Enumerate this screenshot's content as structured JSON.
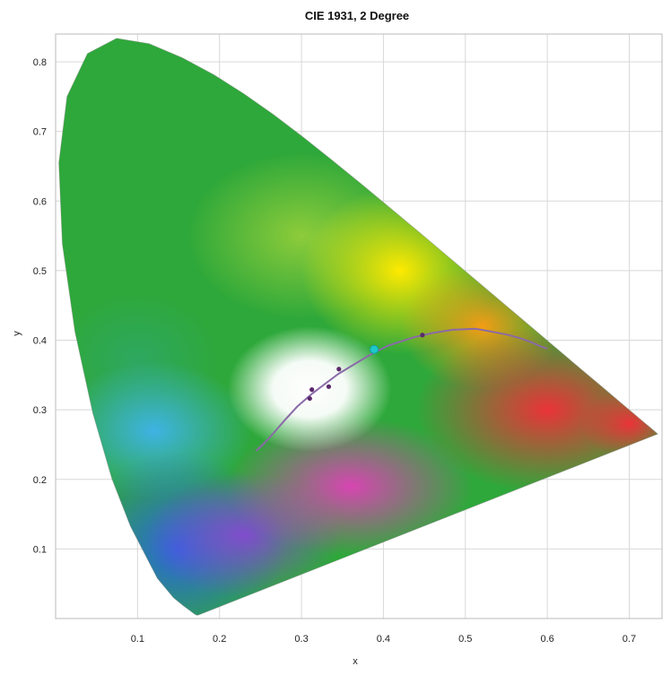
{
  "chart_data": {
    "type": "scatter",
    "title": "CIE 1931, 2 Degree",
    "xlabel": "x",
    "ylabel": "y",
    "xlim": [
      0.0,
      0.74
    ],
    "ylim": [
      0.0,
      0.84
    ],
    "grid": true,
    "x_ticks": [
      0.1,
      0.2,
      0.3,
      0.4,
      0.5,
      0.6,
      0.7
    ],
    "y_ticks": [
      0.1,
      0.2,
      0.3,
      0.4,
      0.5,
      0.6,
      0.7,
      0.8
    ],
    "spectral_locus": {
      "x": [
        0.1741,
        0.1738,
        0.1733,
        0.1726,
        0.1714,
        0.1689,
        0.1644,
        0.1566,
        0.144,
        0.1241,
        0.0913,
        0.0687,
        0.0454,
        0.0235,
        0.0082,
        0.0039,
        0.0139,
        0.0389,
        0.0743,
        0.1142,
        0.1547,
        0.1929,
        0.2296,
        0.2658,
        0.3016,
        0.3373,
        0.3731,
        0.4087,
        0.4441,
        0.4788,
        0.5125,
        0.5448,
        0.5752,
        0.6029,
        0.627,
        0.6482,
        0.6658,
        0.6801,
        0.6915,
        0.7006,
        0.7079,
        0.714,
        0.719,
        0.723,
        0.726,
        0.7283,
        0.73,
        0.7311,
        0.732,
        0.7327,
        0.7334,
        0.734,
        0.7344,
        0.7346,
        0.7347
      ],
      "y": [
        0.005,
        0.0049,
        0.0048,
        0.0048,
        0.0051,
        0.0069,
        0.0109,
        0.0177,
        0.0297,
        0.0578,
        0.1327,
        0.2007,
        0.295,
        0.4127,
        0.5384,
        0.6548,
        0.7502,
        0.812,
        0.8338,
        0.8262,
        0.8059,
        0.7816,
        0.7543,
        0.7243,
        0.6923,
        0.6589,
        0.6245,
        0.5896,
        0.5547,
        0.5202,
        0.4866,
        0.4544,
        0.4242,
        0.3965,
        0.3725,
        0.3514,
        0.334,
        0.3197,
        0.3083,
        0.2993,
        0.292,
        0.2859,
        0.2809,
        0.277,
        0.274,
        0.2717,
        0.27,
        0.2689,
        0.268,
        0.2673,
        0.2666,
        0.266,
        0.2656,
        0.2654,
        0.2653
      ]
    },
    "planckian_locus": {
      "x": [
        0.2446,
        0.253,
        0.264,
        0.28,
        0.295,
        0.3135,
        0.3334,
        0.345,
        0.3805,
        0.4058,
        0.4369,
        0.46,
        0.4843,
        0.5125,
        0.5275,
        0.5504,
        0.5647,
        0.58,
        0.5934,
        0.6
      ],
      "y": [
        0.2409,
        0.25,
        0.264,
        0.2856,
        0.3048,
        0.3236,
        0.3414,
        0.3516,
        0.3768,
        0.3923,
        0.4041,
        0.4104,
        0.415,
        0.4164,
        0.4133,
        0.4081,
        0.4037,
        0.3975,
        0.3903,
        0.388
      ]
    },
    "series": [
      {
        "points": [
          {
            "x": 0.3101,
            "y": 0.3162
          },
          {
            "x": 0.3127,
            "y": 0.329
          },
          {
            "x": 0.3333,
            "y": 0.3333
          },
          {
            "x": 0.3457,
            "y": 0.3585
          },
          {
            "x": 0.4476,
            "y": 0.4074
          }
        ],
        "color": "#5a2a6a"
      },
      {
        "points": [
          {
            "x": 0.3887,
            "y": 0.3867
          }
        ],
        "color": "#1ec8c8"
      }
    ],
    "colors": {
      "locus_line": "#8a6aa8",
      "grid": "#d8d8d8",
      "border": "#bbbbbb"
    }
  }
}
